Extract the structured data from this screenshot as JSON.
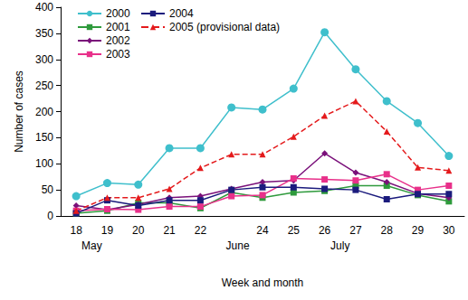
{
  "chart_data": {
    "type": "line",
    "x_label": "Week and month",
    "y_label": "Number of cases",
    "categories": [
      "18",
      "19",
      "20",
      "21",
      "22",
      null,
      "24",
      "25",
      "26",
      "27",
      "28",
      "29",
      "30"
    ],
    "annotations": [
      {
        "text": "May",
        "position": 0.5
      },
      {
        "text": "June",
        "position": 5.2
      },
      {
        "text": "July",
        "position": 8.5
      }
    ],
    "series": [
      {
        "name": "2000",
        "color": "#3fbfcc",
        "marker": "circle",
        "line_style": "solid",
        "values": [
          38,
          63,
          60,
          130,
          130,
          208,
          204,
          244,
          352,
          281,
          220,
          178,
          115
        ]
      },
      {
        "name": "2001",
        "color": "#2e9a3c",
        "marker": "square",
        "line_style": "solid",
        "values": [
          5,
          10,
          25,
          25,
          15,
          45,
          35,
          45,
          48,
          58,
          58,
          40,
          28
        ]
      },
      {
        "name": "2002",
        "color": "#7a107a",
        "marker": "diamond",
        "line_style": "solid",
        "values": [
          20,
          12,
          22,
          35,
          38,
          52,
          65,
          68,
          120,
          83,
          65,
          43,
          35
        ]
      },
      {
        "name": "2003",
        "color": "#e8308a",
        "marker": "square",
        "line_style": "solid",
        "values": [
          10,
          13,
          12,
          18,
          18,
          38,
          40,
          72,
          70,
          68,
          80,
          50,
          58
        ]
      },
      {
        "name": "2004",
        "color": "#1b1b7d",
        "marker": "square",
        "line_style": "solid",
        "values": [
          5,
          30,
          20,
          30,
          30,
          50,
          55,
          55,
          52,
          50,
          32,
          42,
          42
        ]
      },
      {
        "name": "2005 (provisional data)",
        "color": "#e41a1c",
        "marker": "triangle",
        "line_style": "dashed",
        "values": [
          10,
          35,
          35,
          52,
          92,
          118,
          118,
          152,
          192,
          220,
          162,
          93,
          87
        ]
      }
    ],
    "ylim": [
      0,
      400
    ],
    "yticks": [
      0,
      50,
      100,
      150,
      200,
      250,
      300,
      350,
      400
    ],
    "grid": false,
    "legend": "top-left"
  }
}
